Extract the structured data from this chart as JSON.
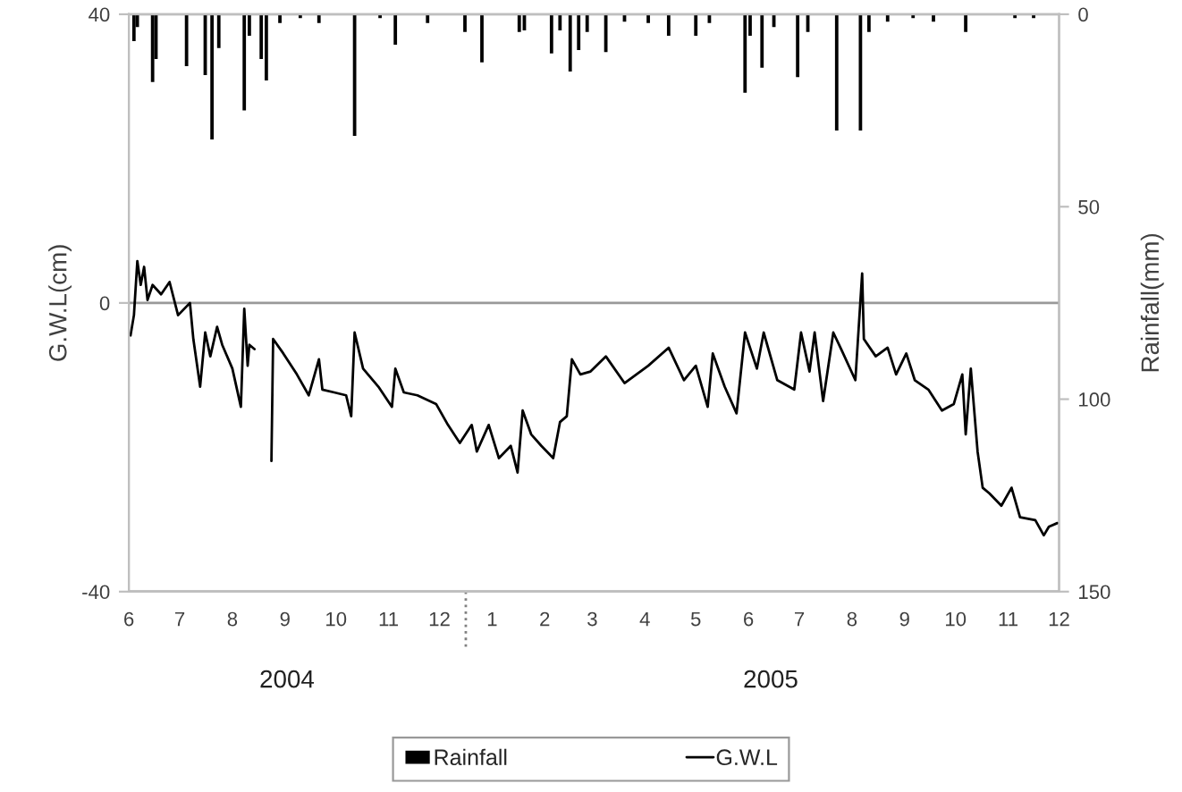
{
  "chart_data": {
    "type": "line",
    "ylabel": "G.W.L(cm)",
    "y2label": "Rainfall(mm)",
    "xlim": [
      "2004-06-01",
      "2005-12-01"
    ],
    "xticks": [
      {
        "value": "2004-06-01",
        "label": "6"
      },
      {
        "value": "2004-07-01",
        "label": "7"
      },
      {
        "value": "2004-08-01",
        "label": "8"
      },
      {
        "value": "2004-09-01",
        "label": "9"
      },
      {
        "value": "2004-10-01",
        "label": "10"
      },
      {
        "value": "2004-11-01",
        "label": "11"
      },
      {
        "value": "2004-12-01",
        "label": "12"
      },
      {
        "value": "2005-01-01",
        "label": "1"
      },
      {
        "value": "2005-02-01",
        "label": "2"
      },
      {
        "value": "2005-03-01",
        "label": "3"
      },
      {
        "value": "2005-04-01",
        "label": "4"
      },
      {
        "value": "2005-05-01",
        "label": "5"
      },
      {
        "value": "2005-06-01",
        "label": "6"
      },
      {
        "value": "2005-07-01",
        "label": "7"
      },
      {
        "value": "2005-08-01",
        "label": "8"
      },
      {
        "value": "2005-09-01",
        "label": "9"
      },
      {
        "value": "2005-10-01",
        "label": "10"
      },
      {
        "value": "2005-11-01",
        "label": "11"
      },
      {
        "value": "2005-12-01",
        "label": "12"
      }
    ],
    "ylim": [
      -40,
      40
    ],
    "yticks": [
      -40,
      0,
      40
    ],
    "y2lim": [
      150,
      0
    ],
    "y2ticks": [
      0,
      50,
      100,
      150
    ],
    "grid": "y",
    "legend": "bottom",
    "annotations": [
      "2004",
      "2005"
    ],
    "series": [
      {
        "name": "Rainfall",
        "type": "bar",
        "axis": "y2",
        "color": "#000000",
        "x": [
          "2004-06-04",
          "2004-06-06",
          "2004-06-15",
          "2004-06-17",
          "2004-07-05",
          "2004-07-16",
          "2004-07-20",
          "2004-07-24",
          "2004-08-08",
          "2004-08-11",
          "2004-08-18",
          "2004-08-21",
          "2004-08-29",
          "2004-09-10",
          "2004-09-21",
          "2004-10-12",
          "2004-10-27",
          "2004-11-05",
          "2004-11-24",
          "2004-12-16",
          "2004-12-26",
          "2005-01-17",
          "2005-01-20",
          "2005-02-05",
          "2005-02-10",
          "2005-02-16",
          "2005-02-21",
          "2005-02-26",
          "2005-03-09",
          "2005-03-20",
          "2005-04-03",
          "2005-04-15",
          "2005-05-01",
          "2005-05-09",
          "2005-05-30",
          "2005-06-02",
          "2005-06-09",
          "2005-06-16",
          "2005-06-30",
          "2005-07-06",
          "2005-07-23",
          "2005-08-06",
          "2005-08-11",
          "2005-08-22",
          "2005-09-06",
          "2005-09-18",
          "2005-10-07",
          "2005-11-05",
          "2005-11-16"
        ],
        "values": [
          7,
          3.3,
          17.6,
          11.6,
          13.5,
          15.8,
          32.5,
          8.8,
          25,
          5.6,
          11.6,
          17.2,
          2.3,
          1,
          2.3,
          31.6,
          1,
          7.9,
          2.3,
          4.6,
          12.5,
          4.6,
          4.2,
          10.2,
          4.2,
          14.9,
          9.3,
          4.6,
          9.8,
          1.9,
          2.3,
          5.6,
          5.6,
          2.3,
          20.4,
          5.6,
          13.9,
          3.3,
          16.3,
          4.6,
          30.2,
          30.2,
          4.6,
          1.9,
          1,
          1.9,
          4.6,
          1,
          1
        ]
      },
      {
        "name": "G.W.L",
        "color": "#000000",
        "x": [
          "2004-06-02",
          "2004-06-04",
          "2004-06-06",
          "2004-06-08",
          "2004-06-10",
          "2004-06-12",
          "2004-06-15",
          "2004-06-20",
          "2004-06-25",
          "2004-06-30",
          "2004-07-07",
          "2004-07-09",
          "2004-07-13",
          "2004-07-16",
          "2004-07-19",
          "2004-07-23",
          "2004-07-26",
          "2004-08-01",
          "2004-08-06",
          "2004-08-08",
          "2004-08-10",
          "2004-08-11",
          "2004-08-14",
          "2004-08-19",
          "2004-08-24",
          "2004-08-25",
          "2004-08-31",
          "2004-09-08",
          "2004-09-15",
          "2004-09-21",
          "2004-09-23",
          "2004-09-30",
          "2004-10-07",
          "2004-10-10",
          "2004-10-12",
          "2004-10-17",
          "2004-10-26",
          "2004-11-03",
          "2004-11-05",
          "2004-11-10",
          "2004-11-18",
          "2004-11-29",
          "2004-12-06",
          "2004-12-13",
          "2004-12-20",
          "2004-12-23",
          "2004-12-30",
          "2005-01-05",
          "2005-01-12",
          "2005-01-16",
          "2005-01-19",
          "2005-01-24",
          "2005-01-30",
          "2005-02-06",
          "2005-02-10",
          "2005-02-14",
          "2005-02-17",
          "2005-02-22",
          "2005-02-28",
          "2005-03-09",
          "2005-03-20",
          "2005-04-03",
          "2005-04-15",
          "2005-04-24",
          "2005-05-01",
          "2005-05-08",
          "2005-05-11",
          "2005-05-18",
          "2005-05-25",
          "2005-05-30",
          "2005-06-06",
          "2005-06-10",
          "2005-06-18",
          "2005-06-28",
          "2005-07-02",
          "2005-07-07",
          "2005-07-10",
          "2005-07-15",
          "2005-07-21",
          "2005-07-26",
          "2005-08-03",
          "2005-08-07",
          "2005-08-08",
          "2005-08-15",
          "2005-08-22",
          "2005-08-27",
          "2005-09-02",
          "2005-09-07",
          "2005-09-15",
          "2005-09-23",
          "2005-09-30",
          "2005-10-05",
          "2005-10-07",
          "2005-10-10",
          "2005-10-14",
          "2005-10-17",
          "2005-10-21",
          "2005-10-28",
          "2005-11-03",
          "2005-11-08",
          "2005-11-17",
          "2005-11-22",
          "2005-11-25",
          "2005-11-30"
        ],
        "values": [
          -4.5,
          -1.7,
          5.8,
          2.5,
          5.0,
          0.4,
          2.5,
          1.2,
          2.9,
          -1.7,
          0,
          -5.0,
          -11.6,
          -4.1,
          -7.4,
          -3.3,
          -5.8,
          -9.1,
          -14.4,
          -0.8,
          -8.7,
          -5.8,
          -6.4,
          null,
          -21.9,
          -5.0,
          -7.0,
          -9.9,
          -12.8,
          -7.8,
          -12.0,
          -12.4,
          -12.8,
          -15.7,
          -4.1,
          -9.1,
          -11.6,
          -14.4,
          -9.1,
          -12.4,
          -12.8,
          -14.0,
          -16.9,
          -19.4,
          -16.9,
          -20.6,
          -16.9,
          -21.5,
          -19.8,
          -23.5,
          -14.9,
          -18.2,
          -19.8,
          -21.5,
          -16.5,
          -15.7,
          -7.8,
          -9.9,
          -9.5,
          -7.4,
          -11.1,
          -8.7,
          -6.2,
          -10.7,
          -8.7,
          -14.4,
          -7.0,
          -11.6,
          -15.3,
          -4.1,
          -9.1,
          -4.1,
          -10.7,
          -12.0,
          -4.1,
          -9.5,
          -4.1,
          -13.6,
          -4.1,
          -6.6,
          -10.7,
          4.1,
          -5.0,
          -7.4,
          -6.2,
          -9.9,
          -7.0,
          -10.7,
          -12.0,
          -14.9,
          -14.0,
          -9.9,
          -18.2,
          -9.1,
          -20.6,
          -25.6,
          -26.4,
          -28.1,
          -25.6,
          -29.7,
          -30.1,
          -32.2,
          -31.0,
          -30.5
        ]
      }
    ]
  }
}
